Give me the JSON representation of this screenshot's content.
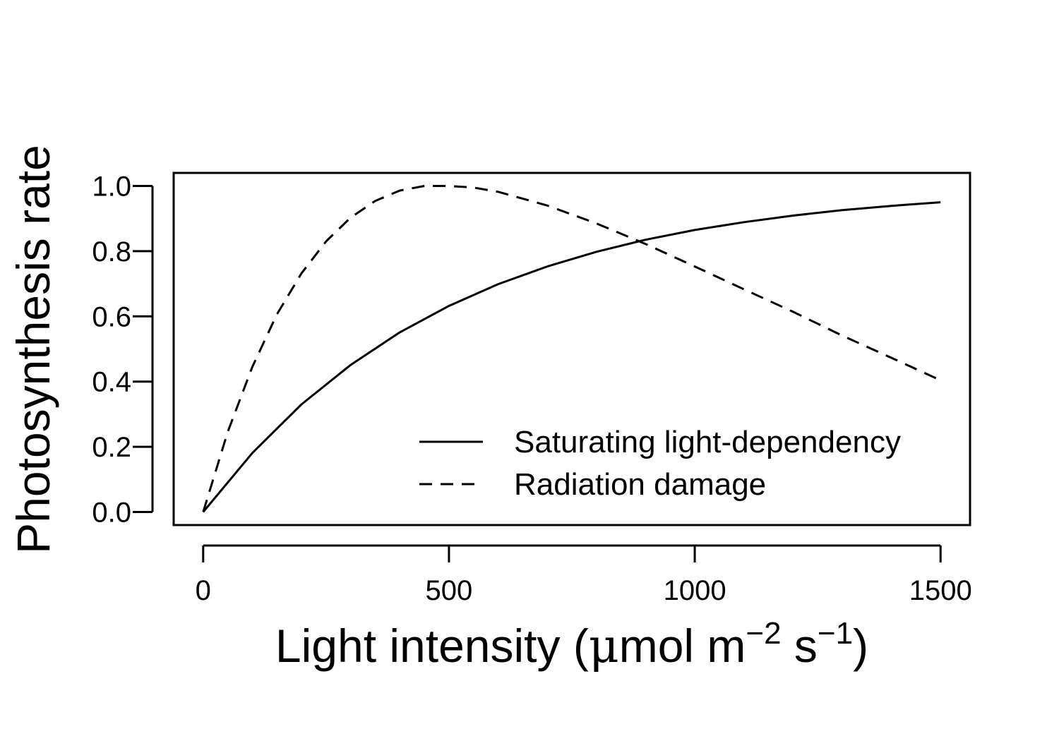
{
  "chart_data": {
    "type": "line",
    "title": "",
    "xlabel": {
      "text": "Light intensity (",
      "mu": "μ",
      "unit_a": "mol m",
      "exp_a": "−2",
      "unit_b": " s",
      "exp_b": "−1",
      "close": ")"
    },
    "ylabel": "Photosynthesis rate",
    "xlim": [
      -60,
      1560
    ],
    "ylim": [
      -0.04,
      1.04
    ],
    "xticks": [
      0,
      500,
      1000,
      1500
    ],
    "xtick_labels": [
      "0",
      "500",
      "1000",
      "1500"
    ],
    "yticks": [
      0.0,
      0.2,
      0.4,
      0.6,
      0.8,
      1.0
    ],
    "ytick_labels": [
      "0.0",
      "0.2",
      "0.4",
      "0.6",
      "0.8",
      "1.0"
    ],
    "grid": false,
    "legend_position": "bottom-right",
    "series": [
      {
        "name": "Saturating light-dependency",
        "line_style": "solid",
        "color": "#000000",
        "x": [
          0,
          100,
          200,
          300,
          400,
          500,
          600,
          700,
          800,
          900,
          1000,
          1100,
          1200,
          1300,
          1400,
          1500
        ],
        "y": [
          0.0,
          0.181,
          0.33,
          0.451,
          0.551,
          0.632,
          0.699,
          0.753,
          0.798,
          0.835,
          0.865,
          0.889,
          0.909,
          0.926,
          0.939,
          0.95
        ]
      },
      {
        "name": "Radiation damage",
        "line_style": "dashed",
        "color": "#000000",
        "x": [
          0,
          50,
          100,
          150,
          200,
          250,
          300,
          350,
          400,
          450,
          500,
          550,
          600,
          700,
          800,
          900,
          1000,
          1100,
          1200,
          1300,
          1400,
          1500
        ],
        "y": [
          0.0,
          0.246,
          0.445,
          0.606,
          0.732,
          0.83,
          0.903,
          0.954,
          0.986,
          1.0,
          1.0,
          0.995,
          0.982,
          0.94,
          0.885,
          0.822,
          0.753,
          0.683,
          0.614,
          0.541,
          0.473,
          0.404
        ]
      }
    ]
  }
}
